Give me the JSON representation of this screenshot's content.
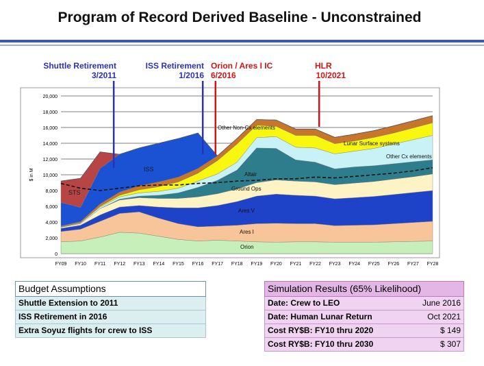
{
  "title": "Program of Record Derived Baseline - Unconstrained",
  "milestones": [
    {
      "label": "Shuttle Retirement",
      "date": "3/2011",
      "color": "#2a32b8"
    },
    {
      "label": "ISS Retirement",
      "date": "1/2016",
      "color": "#2a32b8"
    },
    {
      "label": "Orion / Ares I IC",
      "date": "6/2016",
      "color": "#d21414"
    },
    {
      "label": "HLR",
      "date": "10/2021",
      "color": "#d21414"
    }
  ],
  "chart_data": {
    "type": "area",
    "stacked": true,
    "ylabel": "$ in M",
    "xlabel": "",
    "ylim": [
      0,
      20000
    ],
    "yticks": [
      "0",
      "2,000",
      "4,000",
      "6,000",
      "8,000",
      "10,000",
      "12,000",
      "14,000",
      "16,000",
      "18,000",
      "20,000"
    ],
    "categories": [
      "FY09",
      "FY10",
      "FY11",
      "FY12",
      "FY13",
      "FY14",
      "FY15",
      "FY16",
      "FY17",
      "FY18",
      "FY19",
      "FY20",
      "FY21",
      "FY22",
      "FY23",
      "FY24",
      "FY25",
      "FY26",
      "FY27",
      "FY28"
    ],
    "grid": true,
    "series": [
      {
        "name": "Orion",
        "color": "#c6efb9",
        "values": [
          1500,
          1600,
          2100,
          2700,
          2600,
          2200,
          1800,
          1600,
          1700,
          1600,
          1500,
          1450,
          1500,
          1500,
          1450,
          1450,
          1450,
          1500,
          1550,
          1600
        ]
      },
      {
        "name": "Ares I",
        "color": "#f8c49a",
        "values": [
          1300,
          1500,
          2000,
          2400,
          2700,
          2300,
          2000,
          1800,
          1800,
          2000,
          2300,
          2400,
          2300,
          2300,
          2100,
          2150,
          2200,
          2300,
          2400,
          2500
        ]
      },
      {
        "name": "Ares V",
        "color": "#1f43c8",
        "values": [
          400,
          500,
          800,
          800,
          800,
          1400,
          2000,
          2400,
          2600,
          3000,
          3500,
          3700,
          3600,
          3500,
          3400,
          3500,
          3600,
          3700,
          3800,
          3900
        ]
      },
      {
        "name": "Ground Ops",
        "color": "#fdf3c4",
        "values": [
          150,
          200,
          800,
          900,
          1000,
          1100,
          1200,
          1400,
          1500,
          1600,
          1700,
          1800,
          1800,
          1800,
          1800,
          1850,
          1900,
          1950,
          2000,
          2100
        ]
      },
      {
        "name": "Altair",
        "color": "#2e7d8c",
        "values": [
          0,
          0,
          0,
          100,
          200,
          400,
          700,
          1200,
          1700,
          2400,
          4400,
          4000,
          2700,
          2500,
          2000,
          2050,
          2000,
          1950,
          1900,
          1800
        ]
      },
      {
        "name": "Other Cx elements",
        "color": "#c9f2f7",
        "values": [
          50,
          100,
          200,
          300,
          400,
          500,
          600,
          800,
          800,
          1000,
          1300,
          1500,
          1600,
          1800,
          1900,
          2000,
          2200,
          2500,
          2800,
          3100
        ]
      },
      {
        "name": "Lunar Surface systems",
        "color": "#f7f710",
        "values": [
          0,
          0,
          100,
          200,
          400,
          600,
          800,
          1000,
          1700,
          2300,
          1600,
          1300,
          1500,
          1600,
          1300,
          1300,
          1400,
          1400,
          1500,
          1600
        ]
      },
      {
        "name": "Other Non-Cx elements",
        "color": "#c8762c",
        "values": [
          100,
          150,
          300,
          400,
          500,
          600,
          600,
          600,
          600,
          700,
          700,
          800,
          800,
          800,
          800,
          850,
          850,
          900,
          900,
          900
        ]
      },
      {
        "name": "ISS",
        "color": "#1b52d4",
        "values": [
          3000,
          1800,
          4500,
          4800,
          4800,
          4900,
          4900,
          4500,
          0,
          0,
          0,
          0,
          0,
          0,
          0,
          0,
          0,
          0,
          0,
          0
        ]
      },
      {
        "name": "STS",
        "color": "#b84546",
        "values": [
          2700,
          3700,
          2100,
          0,
          0,
          0,
          0,
          0,
          0,
          0,
          0,
          0,
          0,
          0,
          0,
          0,
          0,
          0,
          0,
          0
        ]
      }
    ],
    "baseline_series": {
      "name": "Baseline",
      "values": [
        8900,
        8300,
        8000,
        8300,
        8600,
        8700,
        8700,
        8900,
        9000,
        9200,
        9300,
        9500,
        9500,
        9700,
        9600,
        9800,
        10000,
        10200,
        10500,
        10900
      ]
    },
    "milestone_positions_fy": [
      {
        "label": "Shuttle Retirement",
        "fy": 2011.7
      },
      {
        "label": "ISS Retirement",
        "fy": 2016.25
      },
      {
        "label": "Orion / Ares I IC",
        "fy": 2016.9
      },
      {
        "label": "HLR",
        "fy": 2022.2
      }
    ],
    "area_labels": [
      {
        "text": "STS"
      },
      {
        "text": "ISS"
      },
      {
        "text": "Other Non-Cx elements"
      },
      {
        "text": "Lunar Surface systems"
      },
      {
        "text": "Other Cx elements"
      },
      {
        "text": "Altair"
      },
      {
        "text": "Ground Ops"
      },
      {
        "text": "Ares V"
      },
      {
        "text": "Ares I"
      },
      {
        "text": "Orion"
      }
    ]
  },
  "budget": {
    "header": "Budget Assumptions",
    "rows": [
      "Shuttle Extension to 2011",
      "ISS Retirement in 2016",
      "Extra Soyuz flights for crew to ISS"
    ]
  },
  "simulation": {
    "header": "Simulation Results (65% Likelihood)",
    "rows": [
      {
        "label": "Date: Crew to LEO",
        "value": "June 2016"
      },
      {
        "label": "Date: Human Lunar Return",
        "value": "Oct 2021"
      },
      {
        "label": "Cost RY$B: FY10 thru 2020",
        "value": "$ 149"
      },
      {
        "label": "Cost RY$B: FY10 thru 2030",
        "value": "$ 307"
      }
    ]
  }
}
